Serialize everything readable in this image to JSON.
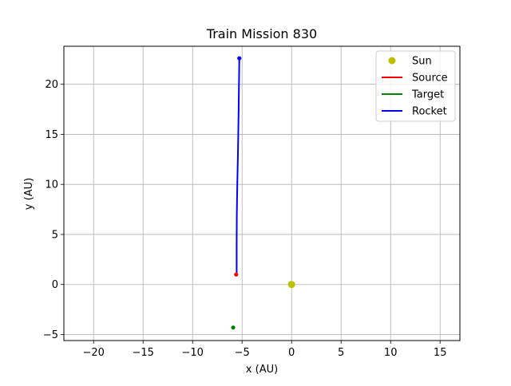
{
  "chart_data": {
    "type": "line",
    "title": "Train Mission 830",
    "xlabel": "x (AU)",
    "ylabel": "y (AU)",
    "xlim": [
      -23,
      17
    ],
    "ylim": [
      -5.6,
      23.8
    ],
    "xticks": [
      -20,
      -15,
      -10,
      -5,
      0,
      5,
      10,
      15
    ],
    "yticks": [
      -5,
      0,
      5,
      10,
      15,
      20
    ],
    "xtick_labels": [
      "−20",
      "−15",
      "−10",
      "−5",
      "0",
      "5",
      "10",
      "15"
    ],
    "ytick_labels": [
      "−5",
      "0",
      "5",
      "10",
      "15",
      "20"
    ],
    "grid": true,
    "legend_position": "top-right",
    "legend": [
      {
        "label": "Sun",
        "kind": "marker",
        "color": "#bfbf00"
      },
      {
        "label": "Source",
        "kind": "line",
        "color": "#ff0000"
      },
      {
        "label": "Target",
        "kind": "line",
        "color": "#008000"
      },
      {
        "label": "Rocket",
        "kind": "line",
        "color": "#0000ff"
      }
    ],
    "series": [
      {
        "name": "Rocket",
        "color": "#0000ff",
        "x": [
          -5.55,
          -5.55,
          -5.53,
          -5.48,
          -5.42,
          -5.38,
          -5.35,
          -5.32,
          -5.3,
          -5.28
        ],
        "y": [
          1.2,
          4.0,
          7.0,
          10.0,
          13.0,
          15.5,
          17.5,
          19.5,
          21.0,
          22.6
        ]
      }
    ],
    "points": [
      {
        "name": "Sun",
        "x": 0.0,
        "y": 0.0,
        "color": "#bfbf00",
        "size": "large"
      },
      {
        "name": "Source",
        "x": -5.6,
        "y": 1.0,
        "color": "#ff0000",
        "size": "small"
      },
      {
        "name": "Target",
        "x": -5.9,
        "y": -4.3,
        "color": "#008000",
        "size": "small"
      },
      {
        "name": "Rocket",
        "x": -5.28,
        "y": 22.6,
        "color": "#0000ff",
        "size": "small"
      }
    ]
  }
}
